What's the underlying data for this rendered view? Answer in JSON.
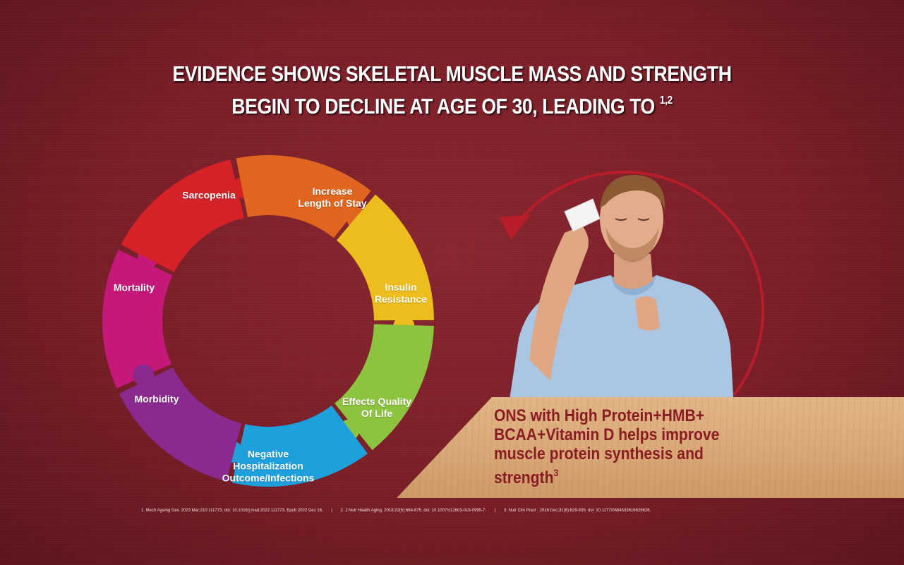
{
  "headline": {
    "line1": "EVIDENCE SHOWS SKELETAL MUSCLE MASS  AND STRENGTH",
    "line2": "BEGIN TO DECLINE AT AGE OF 30, LEADING TO",
    "refs_sup": "1,2"
  },
  "puzzle_ring": {
    "segments": [
      {
        "label_l1": "Sarcopenia",
        "label_l2": "",
        "color": "#c4187a"
      },
      {
        "label_l1": "Increase",
        "label_l2": "Length of Stay",
        "color": "#d52128"
      },
      {
        "label_l1": "Insulin",
        "label_l2": "Resistance",
        "color": "#e0661f"
      },
      {
        "label_l1": "Effects Quality",
        "label_l2": "Of Life",
        "color": "#ecbd1c"
      },
      {
        "label_l1": "Negative",
        "label_l2": "Hospitalization",
        "label_l3": "Outcome/Infections",
        "color": "#8dc43f"
      },
      {
        "label_l1": "Morbidity",
        "label_l2": "",
        "color": "#1ea0dc"
      },
      {
        "label_l1": "Mortality",
        "label_l2": "",
        "color": "#8a2a8f"
      }
    ]
  },
  "banner": {
    "text": "ONS with High Protein+HMB+ BCAA+Vitamin D helps improve muscle protein synthesis and strength",
    "sup": "3"
  },
  "references": [
    "1. Mech Ageing Dev. 2023 Mar;210:111773. doi: 10.1016/j.mad.2022.111773. Epub 2022 Dec 16.",
    "|",
    "2. J Nutr Health Aging. 2018;22(6):664-675. doi: 10.1007/s12603-018-0995-7.",
    "|",
    "3. Nutr Clin Pract . 2016 Dec;31(6):829-835. doi: 10.1177/0884533616629626."
  ],
  "colors": {
    "background": "#7a1e28",
    "banner_bg": "#d9a877",
    "banner_text": "#8a1d24",
    "arrow": "#b81d2a"
  }
}
